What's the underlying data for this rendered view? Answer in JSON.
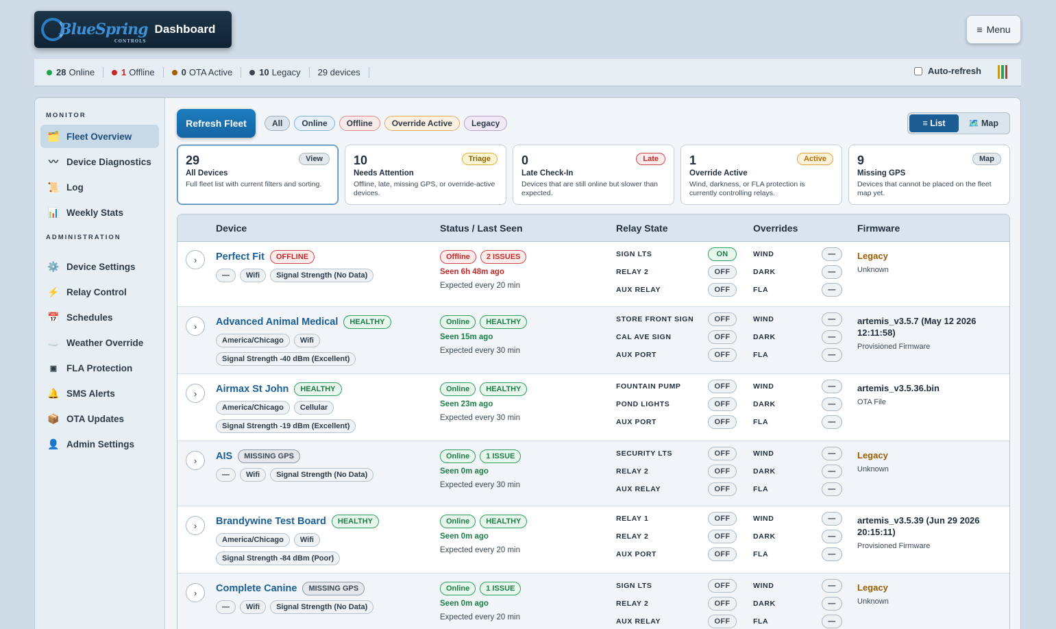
{
  "header": {
    "brand_word": "BlueSpring",
    "brand_sub": "CONTROLS",
    "title": "Dashboard",
    "menu_label": "Menu",
    "menu_icon": "hamburger-icon"
  },
  "status": {
    "online_count": "28",
    "online_label": "Online",
    "offline_count": "1",
    "offline_label": "Offline",
    "ota_count": "0",
    "ota_label": "OTA Active",
    "legacy_count": "10",
    "legacy_label": "Legacy",
    "devices": "29 devices",
    "auto_refresh": "Auto-refresh",
    "colors": {
      "online": "#1fa34f",
      "offline": "#c62828",
      "ota": "#a55f00",
      "legacy": "#3c4753"
    }
  },
  "sidebar": {
    "monitor_heading": "MONITOR",
    "admin_heading": "ADMINISTRATION",
    "monitor_items": [
      {
        "label": "Fleet Overview",
        "icon": "folder-icon"
      },
      {
        "label": "Device Diagnostics",
        "icon": "pulse-icon"
      },
      {
        "label": "Log",
        "icon": "scroll-icon"
      },
      {
        "label": "Weekly Stats",
        "icon": "bar-chart-icon"
      }
    ],
    "admin_items": [
      {
        "label": "Device Settings",
        "icon": "gear-icon"
      },
      {
        "label": "Relay Control",
        "icon": "lightning-icon"
      },
      {
        "label": "Schedules",
        "icon": "calendar-icon"
      },
      {
        "label": "Weather Override",
        "icon": "cloud-icon"
      },
      {
        "label": "FLA Protection",
        "icon": "chip-icon"
      },
      {
        "label": "SMS Alerts",
        "icon": "bell-icon"
      },
      {
        "label": "OTA Updates",
        "icon": "package-icon"
      },
      {
        "label": "Admin Settings",
        "icon": "user-icon"
      }
    ]
  },
  "toolbar": {
    "refresh_label": "Refresh Fleet",
    "filters": [
      "All",
      "Online",
      "Offline",
      "Override Active",
      "Legacy"
    ],
    "view_list": "≡ List",
    "view_map": "🗺️ Map"
  },
  "cards": [
    {
      "num": "29",
      "title": "All Devices",
      "desc": "Full fleet list with current filters and sorting.",
      "tag": "View"
    },
    {
      "num": "10",
      "title": "Needs Attention",
      "desc": "Offline, late, missing GPS, or override-active devices.",
      "tag": "Triage"
    },
    {
      "num": "0",
      "title": "Late Check-In",
      "desc": "Devices that are still online but slower than expected.",
      "tag": "Late"
    },
    {
      "num": "1",
      "title": "Override Active",
      "desc": "Wind, darkness, or FLA protection is currently controlling relays.",
      "tag": "Active"
    },
    {
      "num": "9",
      "title": "Missing GPS",
      "desc": "Devices that cannot be placed on the fleet map yet.",
      "tag": "Map"
    }
  ],
  "table": {
    "headers": [
      "Device",
      "Status / Last Seen",
      "Relay State",
      "Overrides",
      "Firmware"
    ],
    "override_labels": [
      "WIND",
      "DARK",
      "FLA"
    ],
    "override_value": "—",
    "expand_icon": "›",
    "rows": [
      {
        "name": "Perfect Fit",
        "badge": "OFFLINE",
        "tags": [
          "—",
          "Wifi",
          "Signal Strength (No Data)"
        ],
        "status": "Offline",
        "status_badge": "2 ISSUES",
        "seen": "Seen 6h 48m ago",
        "expected": "Expected every 20 min",
        "relays": [
          {
            "name": "SIGN LTS",
            "state": "ON"
          },
          {
            "name": "RELAY 2",
            "state": "OFF"
          },
          {
            "name": "AUX RELAY",
            "state": "OFF"
          }
        ],
        "fw": "Legacy",
        "fw_sub": "Unknown"
      },
      {
        "name": "Advanced Animal Medical",
        "badge": "HEALTHY",
        "tags": [
          "America/Chicago",
          "Wifi"
        ],
        "tags2": [
          "Signal Strength -40 dBm (Excellent)"
        ],
        "status": "Online",
        "status_badge": "HEALTHY",
        "seen": "Seen 15m ago",
        "expected": "Expected every 30 min",
        "relays": [
          {
            "name": "STORE FRONT SIGN",
            "state": "OFF"
          },
          {
            "name": "CAL AVE SIGN",
            "state": "OFF"
          },
          {
            "name": "AUX PORT",
            "state": "OFF"
          }
        ],
        "fw": "artemis_v3.5.7 (May 12 2026 12:11:58)",
        "fw_sub": "Provisioned Firmware"
      },
      {
        "name": "Airmax St John",
        "badge": "HEALTHY",
        "tags": [
          "America/Chicago",
          "Cellular"
        ],
        "tags2": [
          "Signal Strength -19 dBm (Excellent)"
        ],
        "status": "Online",
        "status_badge": "HEALTHY",
        "seen": "Seen 23m ago",
        "expected": "Expected every 30 min",
        "relays": [
          {
            "name": "FOUNTAIN PUMP",
            "state": "OFF"
          },
          {
            "name": "POND LIGHTS",
            "state": "OFF"
          },
          {
            "name": "AUX PORT",
            "state": "OFF"
          }
        ],
        "fw": "artemis_v3.5.36.bin",
        "fw_sub": "OTA File"
      },
      {
        "name": "AIS",
        "badge": "MISSING GPS",
        "tags": [
          "—",
          "Wifi",
          "Signal Strength (No Data)"
        ],
        "status": "Online",
        "status_badge": "1 ISSUE",
        "seen": "Seen 0m ago",
        "expected": "Expected every 30 min",
        "relays": [
          {
            "name": "SECURITY LTS",
            "state": "OFF"
          },
          {
            "name": "RELAY 2",
            "state": "OFF"
          },
          {
            "name": "AUX RELAY",
            "state": "OFF"
          }
        ],
        "fw": "Legacy",
        "fw_sub": "Unknown"
      },
      {
        "name": "Brandywine Test Board",
        "badge": "HEALTHY",
        "tags": [
          "America/Chicago",
          "Wifi"
        ],
        "tags2": [
          "Signal Strength -84 dBm (Poor)"
        ],
        "status": "Online",
        "status_badge": "HEALTHY",
        "seen": "Seen 0m ago",
        "expected": "Expected every 20 min",
        "relays": [
          {
            "name": "RELAY 1",
            "state": "OFF"
          },
          {
            "name": "RELAY 2",
            "state": "OFF"
          },
          {
            "name": "AUX PORT",
            "state": "OFF"
          }
        ],
        "fw": "artemis_v3.5.39 (Jun 29 2026 20:15:11)",
        "fw_sub": "Provisioned Firmware"
      },
      {
        "name": "Complete Canine",
        "badge": "MISSING GPS",
        "tags": [
          "—",
          "Wifi",
          "Signal Strength (No Data)"
        ],
        "status": "Online",
        "status_badge": "1 ISSUE",
        "seen": "Seen 0m ago",
        "expected": "Expected every 20 min",
        "relays": [
          {
            "name": "SIGN LTS",
            "state": "OFF"
          },
          {
            "name": "RELAY 2",
            "state": "OFF"
          },
          {
            "name": "AUX RELAY",
            "state": "OFF"
          }
        ],
        "fw": "Legacy",
        "fw_sub": "Unknown"
      }
    ]
  }
}
